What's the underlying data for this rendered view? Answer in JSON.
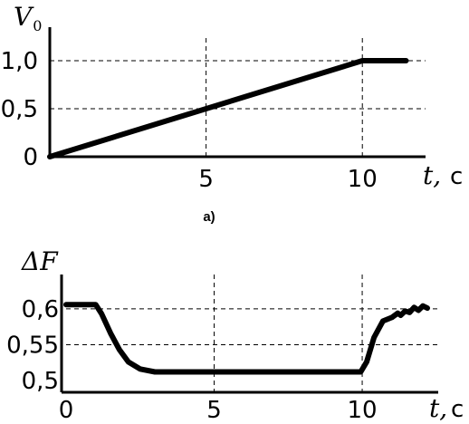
{
  "chart_data": [
    {
      "panel": "a)",
      "type": "line",
      "ylabel": "V",
      "ylabel_sub": "0",
      "xlabel": "t,",
      "xunit": "с",
      "xlim": [
        0,
        11.5
      ],
      "ylim": [
        0,
        1.0
      ],
      "xticks": [
        {
          "value": 5,
          "label": "5"
        },
        {
          "value": 10,
          "label": "10"
        }
      ],
      "yticks": [
        {
          "value": 0,
          "label": "0"
        },
        {
          "value": 0.5,
          "label": "0,5"
        },
        {
          "value": 1.0,
          "label": "1,0"
        }
      ],
      "grid": "dashed at ticks",
      "series": [
        {
          "x": [
            0,
            10,
            11.4
          ],
          "y": [
            0,
            1.0,
            1.0
          ]
        }
      ]
    },
    {
      "panel": "",
      "type": "line",
      "ylabel": "ΔF",
      "xlabel": "t,",
      "xunit": "с",
      "xlim": [
        0,
        12.2
      ],
      "ylim": [
        0.5,
        0.61
      ],
      "xticks": [
        {
          "value": 0,
          "label": "0"
        },
        {
          "value": 5,
          "label": "5"
        },
        {
          "value": 10,
          "label": "10"
        }
      ],
      "yticks": [
        {
          "value": 0.5,
          "label": "0,5"
        },
        {
          "value": 0.55,
          "label": "0,55"
        },
        {
          "value": 0.6,
          "label": "0,6"
        }
      ],
      "grid": "dashed at ticks",
      "series": [
        {
          "x": [
            0,
            1.0,
            1.2,
            1.5,
            1.8,
            2.1,
            2.5,
            3.0,
            3.5,
            5.0,
            8.0,
            9.95,
            10.15,
            10.4,
            10.7,
            11.0,
            11.2,
            11.3,
            11.45,
            11.6,
            11.75,
            11.9,
            12.05,
            12.2
          ],
          "y": [
            0.606,
            0.606,
            0.593,
            0.566,
            0.543,
            0.526,
            0.516,
            0.512,
            0.512,
            0.512,
            0.512,
            0.512,
            0.526,
            0.56,
            0.583,
            0.588,
            0.594,
            0.591,
            0.597,
            0.595,
            0.602,
            0.598,
            0.604,
            0.601
          ]
        }
      ]
    }
  ]
}
